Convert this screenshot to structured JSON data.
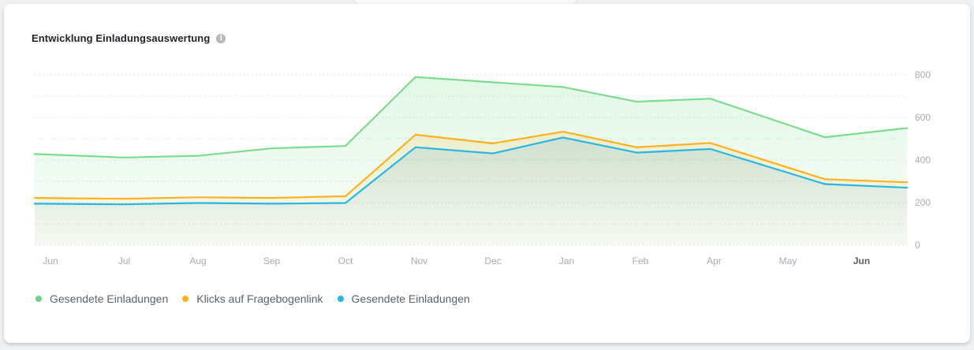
{
  "header": {
    "title": "Entwicklung Einladungsauswertung",
    "info_icon": "info-icon"
  },
  "chart_data": {
    "type": "area",
    "categories": [
      "Jun",
      "Jul",
      "Aug",
      "Sep",
      "Oct",
      "Nov",
      "Dec",
      "Jan",
      "Feb",
      "Apr",
      "May",
      "Jun"
    ],
    "bold_categories": [
      11
    ],
    "x": [
      0,
      1,
      2,
      3,
      4,
      4.95,
      6,
      6.95,
      7.95,
      8.95,
      10.5,
      11.5
    ],
    "ylim": [
      0,
      800
    ],
    "yticks": [
      "800",
      "600",
      "400",
      "200",
      "0"
    ],
    "ytick_values": [
      800,
      600,
      400,
      200,
      0
    ],
    "grid": true,
    "series": [
      {
        "name": "Gesendete Einladungen",
        "color": "#7ddc8f",
        "values": [
          428,
          412,
          420,
          455,
          466,
          790,
          765,
          743,
          674,
          688,
          507,
          550
        ]
      },
      {
        "name": "Klicks auf Fragebogenlink",
        "color": "#ffb21e",
        "values": [
          222,
          218,
          225,
          222,
          230,
          519,
          478,
          533,
          460,
          480,
          310,
          295
        ]
      },
      {
        "name": "Gesendete Einladungen",
        "color": "#26b7e3",
        "values": [
          195,
          192,
          198,
          195,
          198,
          460,
          431,
          506,
          435,
          452,
          287,
          270
        ]
      }
    ]
  },
  "legend": {
    "items": [
      {
        "label": "Gesendete Einladungen",
        "color": "#6ad685"
      },
      {
        "label": "Klicks auf Fragebogenlink",
        "color": "#ffb21e"
      },
      {
        "label": "Gesendete Einladungen",
        "color": "#26b7e3"
      }
    ]
  }
}
